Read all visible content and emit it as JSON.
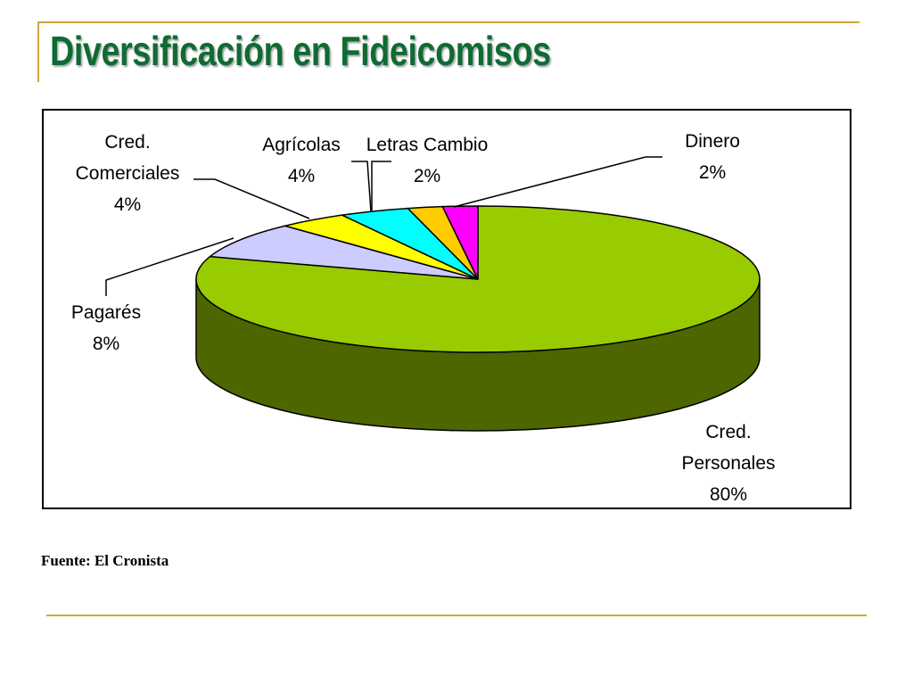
{
  "slide": {
    "title": "Diversificación en Fideicomisos",
    "source": "Fuente: El Cronista"
  },
  "colors": {
    "title": "#0f6b33",
    "accent_rule": "#d4a53c"
  },
  "chart_data": {
    "type": "pie",
    "style": "3d",
    "title": "",
    "legend": "none",
    "start": "12 o'clock, clockwise",
    "slices": [
      {
        "label": "Cred. Personales",
        "label_lines": [
          "Cred.",
          "Personales"
        ],
        "value": 80,
        "value_label": "80%",
        "color": "#99cc00",
        "side_color": "#4d6600"
      },
      {
        "label": "Pagarés",
        "label_lines": [
          "Pagarés"
        ],
        "value": 8,
        "value_label": "8%",
        "color": "#ccccff",
        "side_color": "#666680"
      },
      {
        "label": "Cred. Comerciales",
        "label_lines": [
          "Cred.",
          "Comerciales"
        ],
        "value": 4,
        "value_label": "4%",
        "color": "#ffff00",
        "side_color": "#808000"
      },
      {
        "label": "Agrícolas",
        "label_lines": [
          "Agrícolas"
        ],
        "value": 4,
        "value_label": "4%",
        "color": "#00ffff",
        "side_color": "#008080"
      },
      {
        "label": "Letras Cambio",
        "label_lines": [
          "Letras Cambio"
        ],
        "value": 2,
        "value_label": "2%",
        "color": "#ffcc00",
        "side_color": "#806600"
      },
      {
        "label": "Dinero",
        "label_lines": [
          "Dinero"
        ],
        "value": 2,
        "value_label": "2%",
        "color": "#ff00ff",
        "side_color": "#800080"
      }
    ]
  }
}
